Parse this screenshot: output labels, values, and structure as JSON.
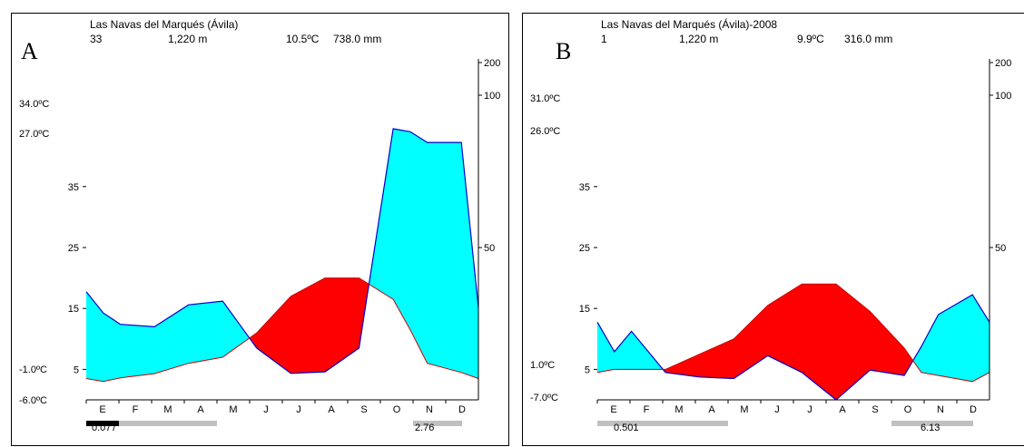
{
  "chart_data": [
    {
      "type": "area",
      "panel_letter": "A",
      "title": "Las Navas del Marqués (Ávila)",
      "stats": [
        "33",
        "1,220 m",
        "10.5ºC",
        "738.0 mm"
      ],
      "extreme_temps": [
        "34.0ºC",
        "27.0ºC",
        "-1.0ºC",
        "-6.0ºC"
      ],
      "left_ticks": [
        "35",
        "25",
        "15",
        "5"
      ],
      "right_ticks": [
        "200",
        "100",
        "50"
      ],
      "months": [
        "E",
        "F",
        "M",
        "A",
        "M",
        "J",
        "J",
        "A",
        "S",
        "O",
        "N",
        "D"
      ],
      "x": [
        0,
        0.5,
        1,
        2,
        3,
        4,
        5,
        6,
        7,
        8,
        9,
        9.5,
        10,
        11,
        11.5
      ],
      "temperature": [
        3.5,
        3,
        3.6,
        4.3,
        6,
        7,
        11,
        17,
        20,
        20,
        16.5,
        11.5,
        6,
        4.5,
        3.5
      ],
      "precipitation": [
        35.5,
        28.5,
        24.8,
        24,
        31.2,
        32.4,
        17,
        8.7,
        9.2,
        17,
        89,
        88,
        84.5,
        84.5,
        30.3
      ],
      "bottom_bars": [
        {
          "color": "#000000",
          "range": [
            0,
            1
          ]
        },
        {
          "color": "#c0c0c0",
          "range": [
            1,
            4
          ]
        },
        {
          "color": "#c0c0c0",
          "range": [
            10,
            11.5
          ]
        }
      ],
      "bottom_labels": [
        "0.077",
        "2.76"
      ],
      "colors": {
        "wet": "#00ffff",
        "dry": "#ff0000",
        "line": "#0000cc",
        "temp_line": "#cc0000"
      }
    },
    {
      "type": "area",
      "panel_letter": "B",
      "title": "Las Navas del Marqués (Ávila)-2008",
      "stats": [
        "1",
        "1,220 m",
        "9.9ºC",
        "316.0 mm"
      ],
      "extreme_temps": [
        "31.0ºC",
        "26.0ºC",
        "1.0ºC",
        "-7.0ºC"
      ],
      "left_ticks": [
        "35",
        "25",
        "15",
        "5"
      ],
      "right_ticks": [
        "200",
        "100",
        "50"
      ],
      "months": [
        "E",
        "F",
        "M",
        "A",
        "M",
        "J",
        "J",
        "A",
        "S",
        "O",
        "N",
        "D"
      ],
      "x": [
        0,
        0.5,
        1,
        2,
        3,
        4,
        5,
        6,
        7,
        8,
        9,
        9.5,
        10,
        11,
        11.5
      ],
      "temperature": [
        4.5,
        5,
        5,
        5,
        7.5,
        10,
        15.5,
        19,
        19,
        14.5,
        8.5,
        4.5,
        4,
        3,
        4.5
      ],
      "precipitation": [
        25.5,
        15.8,
        22.5,
        9,
        7.5,
        7,
        14.5,
        9,
        0,
        9.8,
        8,
        17.5,
        28,
        34.5,
        25.5
      ],
      "bottom_bars": [
        {
          "color": "#c0c0c0",
          "range": [
            0,
            4
          ]
        },
        {
          "color": "#c0c0c0",
          "range": [
            9,
            11.5
          ]
        }
      ],
      "bottom_labels": [
        "0.501",
        "6.13"
      ],
      "colors": {
        "wet": "#00ffff",
        "dry": "#ff0000",
        "line": "#0000cc",
        "temp_line": "#cc0000"
      }
    }
  ]
}
